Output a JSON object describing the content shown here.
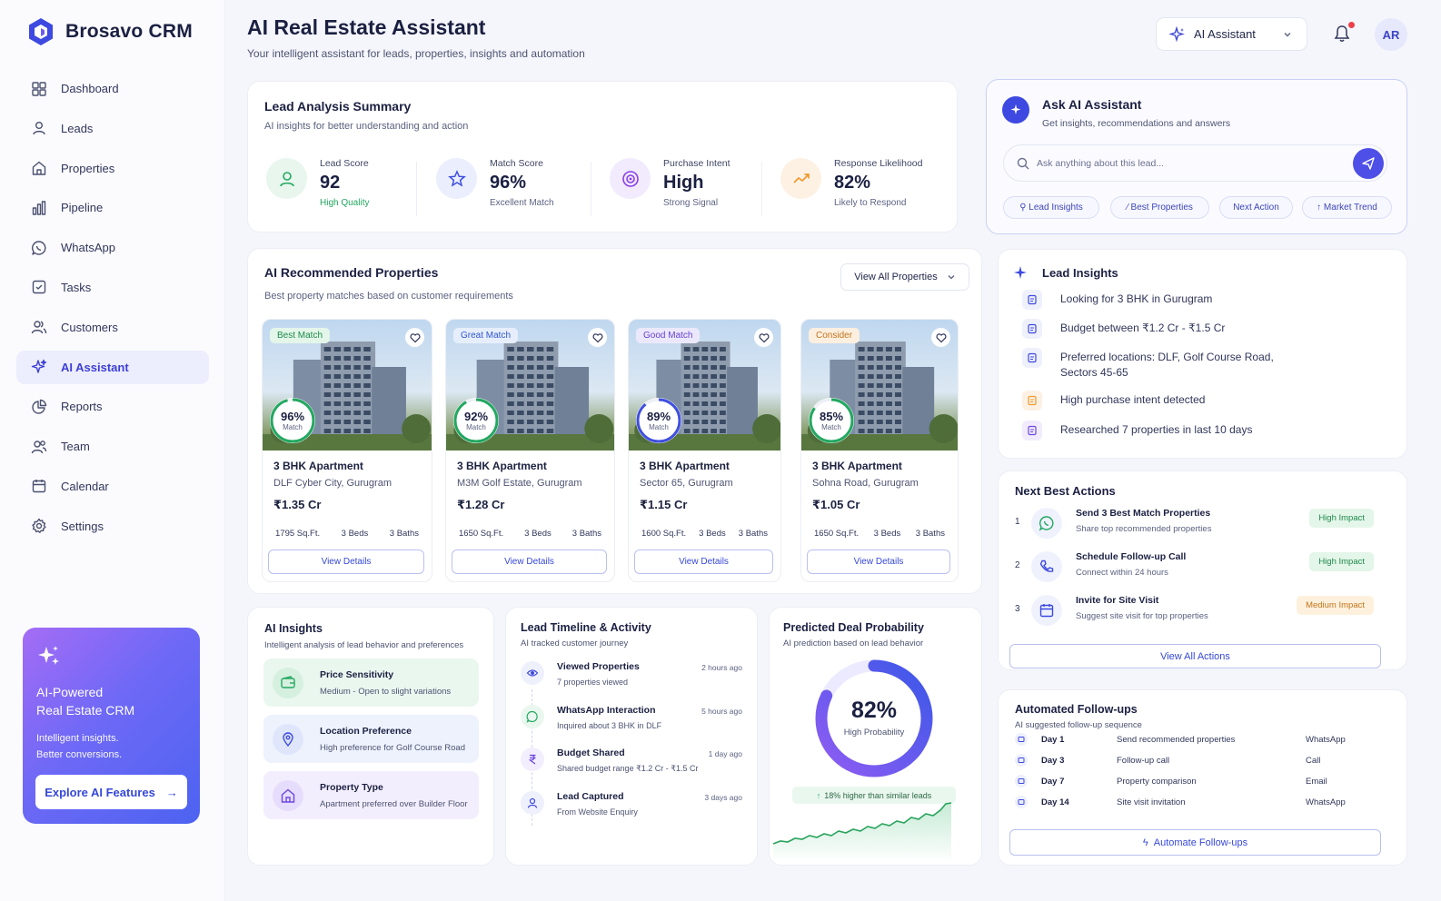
{
  "brand": {
    "name": "Brosavo CRM"
  },
  "nav": [
    {
      "label": "Dashboard",
      "icon": "dashboard-icon"
    },
    {
      "label": "Leads",
      "icon": "user-icon"
    },
    {
      "label": "Properties",
      "icon": "home-icon"
    },
    {
      "label": "Pipeline",
      "icon": "bar-chart-icon"
    },
    {
      "label": "WhatsApp",
      "icon": "whatsapp-icon"
    },
    {
      "label": "Tasks",
      "icon": "checkbox-icon"
    },
    {
      "label": "Customers",
      "icon": "customers-icon"
    },
    {
      "label": "AI Assistant",
      "icon": "sparkle-icon",
      "active": true
    },
    {
      "label": "Reports",
      "icon": "pie-chart-icon"
    },
    {
      "label": "Team",
      "icon": "team-icon"
    },
    {
      "label": "Calendar",
      "icon": "calendar-icon"
    },
    {
      "label": "Settings",
      "icon": "gear-icon"
    }
  ],
  "promo": {
    "title": "AI-Powered\nReal Estate CRM",
    "subtitle": "Intelligent insights.\nBetter conversions.",
    "button": "Explore AI Features"
  },
  "header": {
    "title": "AI Real Estate Assistant",
    "subtitle": "Your intelligent assistant for leads, properties, insights and automation",
    "selector": "AI Assistant",
    "avatar": "AR"
  },
  "summary": {
    "title": "Lead Analysis Summary",
    "subtitle": "AI insights for better understanding and action",
    "metrics": [
      {
        "label": "Lead Score",
        "value": "92",
        "note": "High Quality"
      },
      {
        "label": "Match Score",
        "value": "96%",
        "note": "Excellent Match"
      },
      {
        "label": "Purchase Intent",
        "value": "High",
        "note": "Strong Signal"
      },
      {
        "label": "Response Likelihood",
        "value": "82%",
        "note": "Likely to Respond"
      }
    ]
  },
  "ask": {
    "title": "Ask AI Assistant",
    "subtitle": "Get insights, recommendations and answers",
    "placeholder": "Ask anything about this lead...",
    "chips": [
      "Lead Insights",
      "Best Properties",
      "Next Action",
      "Market Trend"
    ]
  },
  "recommended": {
    "title": "AI Recommended Properties",
    "subtitle": "Best property matches based on customer requirements",
    "view_all": "View All Properties",
    "properties": [
      {
        "badge": "Best Match",
        "match": "96%",
        "match_label": "Match",
        "title": "3 BHK Apartment",
        "location": "DLF Cyber City, Gurugram",
        "price": "₹1.35 Cr",
        "sqft": "1795 Sq.Ft.",
        "beds": "3 Beds",
        "baths": "3 Baths",
        "button": "View Details"
      },
      {
        "badge": "Great Match",
        "match": "92%",
        "match_label": "Match",
        "title": "3 BHK Apartment",
        "location": "M3M Golf Estate, Gurugram",
        "price": "₹1.28 Cr",
        "sqft": "1650 Sq.Ft.",
        "beds": "3 Beds",
        "baths": "3 Baths",
        "button": "View Details"
      },
      {
        "badge": "Good Match",
        "match": "89%",
        "match_label": "Match",
        "title": "3 BHK Apartment",
        "location": "Sector 65, Gurugram",
        "price": "₹1.15 Cr",
        "sqft": "1600 Sq.Ft.",
        "beds": "3 Beds",
        "baths": "3 Baths",
        "button": "View Details"
      },
      {
        "badge": "Consider",
        "match": "85%",
        "match_label": "Match",
        "title": "3 BHK Apartment",
        "location": "Sohna Road, Gurugram",
        "price": "₹1.05 Cr",
        "sqft": "1650 Sq.Ft.",
        "beds": "3 Beds",
        "baths": "3 Baths",
        "button": "View Details"
      }
    ]
  },
  "lead_insights": {
    "title": "Lead Insights",
    "items": [
      "Looking for 3 BHK in Gurugram",
      "Budget between ₹1.2 Cr - ₹1.5 Cr",
      "Preferred locations: DLF, Golf Course Road,\nSectors 45-65",
      "High purchase intent detected",
      "Researched 7 properties in last 10 days"
    ]
  },
  "next_actions": {
    "title": "Next Best Actions",
    "items": [
      {
        "num": "1",
        "title": "Send 3 Best Match Properties",
        "sub": "Share top recommended properties",
        "impact": "High Impact"
      },
      {
        "num": "2",
        "title": "Schedule Follow-up Call",
        "sub": "Connect within 24 hours",
        "impact": "High Impact"
      },
      {
        "num": "3",
        "title": "Invite for Site Visit",
        "sub": "Suggest site visit for top properties",
        "impact": "Medium Impact"
      }
    ],
    "button": "View All Actions"
  },
  "followups": {
    "title": "Automated Follow-ups",
    "subtitle": "AI suggested follow-up sequence",
    "rows": [
      {
        "day": "Day 1",
        "action": "Send recommended properties",
        "channel": "WhatsApp"
      },
      {
        "day": "Day 3",
        "action": "Follow-up call",
        "channel": "Call"
      },
      {
        "day": "Day 7",
        "action": "Property comparison",
        "channel": "Email"
      },
      {
        "day": "Day 14",
        "action": "Site visit invitation",
        "channel": "WhatsApp"
      }
    ],
    "button": "Automate Follow-ups"
  },
  "ai_insights": {
    "title": "AI Insights",
    "subtitle": "Intelligent analysis of lead behavior and preferences",
    "items": [
      {
        "title": "Price Sensitivity",
        "sub": "Medium - Open to slight variations"
      },
      {
        "title": "Location Preference",
        "sub": "High preference for Golf Course Road"
      },
      {
        "title": "Property Type",
        "sub": "Apartment preferred over Builder Floor"
      }
    ]
  },
  "timeline": {
    "title": "Lead Timeline & Activity",
    "subtitle": "AI tracked customer journey",
    "items": [
      {
        "title": "Viewed Properties",
        "sub": "7 properties viewed",
        "time": "2 hours ago"
      },
      {
        "title": "WhatsApp Interaction",
        "sub": "Inquired about 3 BHK in DLF",
        "time": "5 hours ago"
      },
      {
        "title": "Budget Shared",
        "sub": "Shared budget range ₹1.2 Cr - ₹1.5 Cr",
        "time": "1 day ago"
      },
      {
        "title": "Lead Captured",
        "sub": "From Website Enquiry",
        "time": "3 days ago"
      }
    ]
  },
  "prediction": {
    "title": "Predicted Deal Probability",
    "subtitle": "AI prediction based on lead behavior",
    "value": "82%",
    "value_fraction": 0.82,
    "label": "High Probability",
    "comparison": "18% higher than similar leads"
  }
}
